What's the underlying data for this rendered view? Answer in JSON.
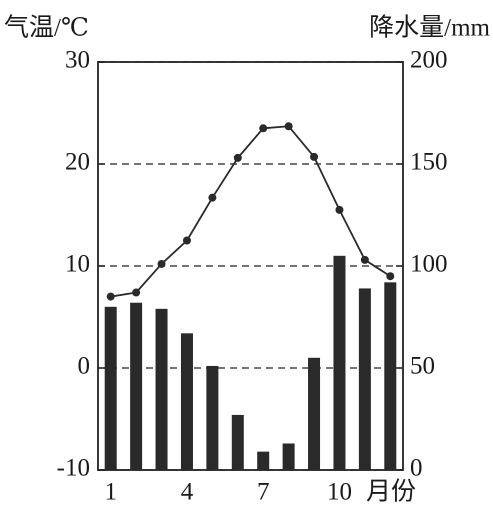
{
  "chart_data": {
    "type": "bar",
    "categories": [
      "1",
      null,
      null,
      "4",
      null,
      null,
      "7",
      null,
      null,
      "10",
      null,
      null
    ],
    "xlabel": "月份",
    "ylabel": "气温/℃",
    "y2label": "降水量/mm",
    "ylim": [
      -10,
      30
    ],
    "yticks": [
      -10,
      0,
      10,
      20,
      30
    ],
    "y2lim": [
      0,
      200
    ],
    "y2ticks": [
      0,
      50,
      100,
      150,
      200
    ],
    "grid": true,
    "series": [
      {
        "type": "line",
        "color": "#2a2a2a",
        "values": [
          7,
          7.4,
          10.2,
          12.5,
          16.7,
          20.6,
          23.5,
          23.7,
          20.7,
          15.5,
          10.6,
          9
        ]
      },
      {
        "type": "bar",
        "axis": "y2",
        "color": "#2a2a2a",
        "values": [
          80,
          82,
          79,
          67,
          51,
          27,
          9,
          13,
          55,
          105,
          89,
          92
        ]
      }
    ]
  }
}
